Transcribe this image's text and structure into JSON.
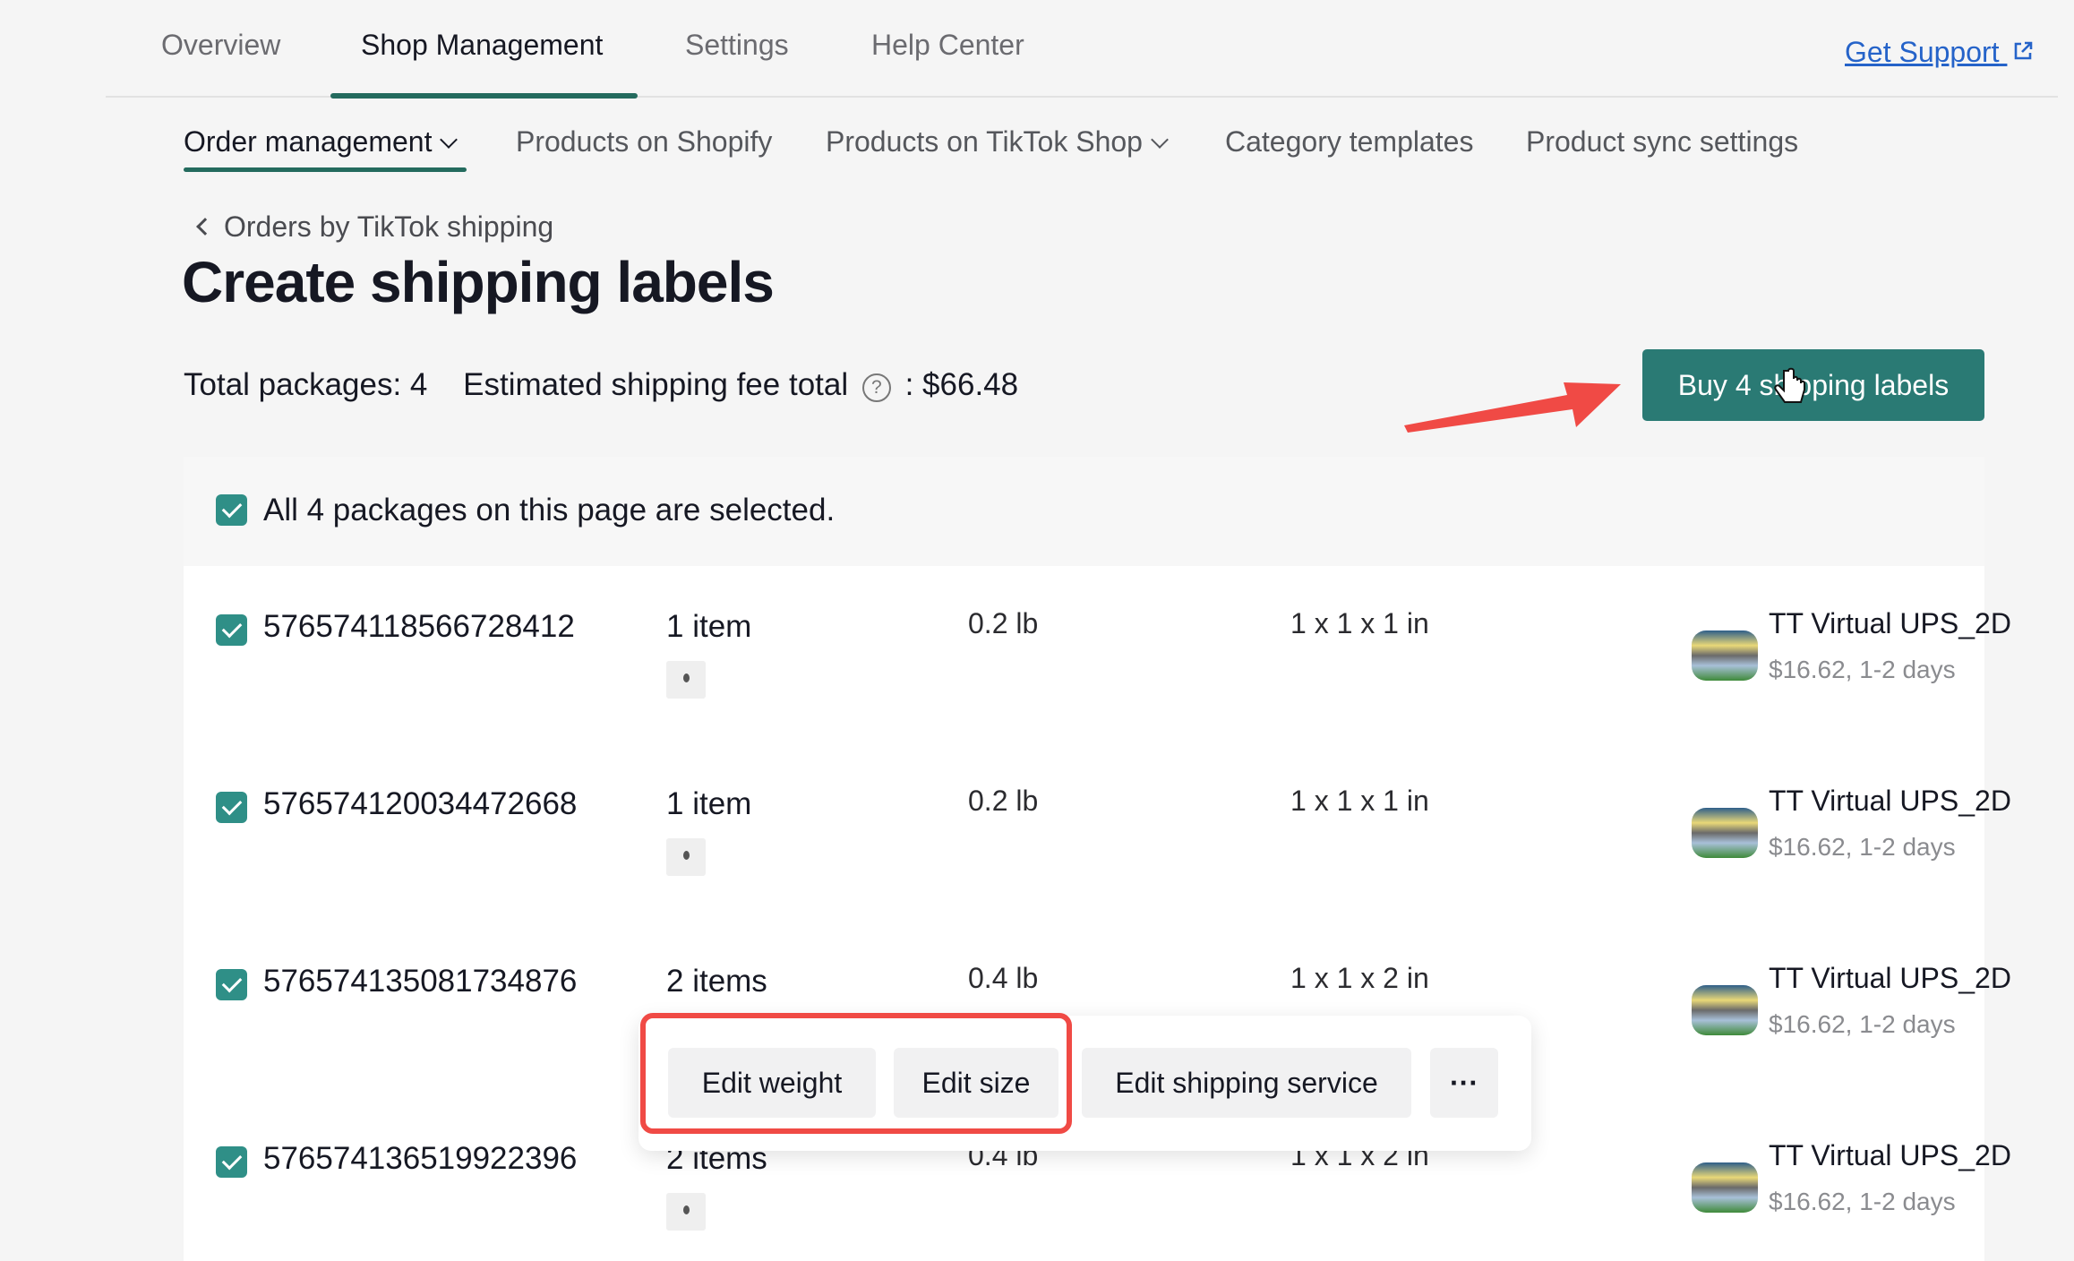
{
  "top_tabs": [
    {
      "label": "Overview"
    },
    {
      "label": "Shop Management",
      "active": true
    },
    {
      "label": "Settings"
    },
    {
      "label": "Help Center"
    }
  ],
  "get_support": {
    "label": "Get Support",
    "icon": "external-link-icon"
  },
  "sub_tabs": [
    {
      "label": "Order management",
      "dropdown": true,
      "active": true
    },
    {
      "label": "Products on Shopify"
    },
    {
      "label": "Products on TikTok Shop",
      "dropdown": true
    },
    {
      "label": "Category templates"
    },
    {
      "label": "Product sync settings"
    }
  ],
  "back_link": "Orders by TikTok shipping",
  "title": "Create shipping labels",
  "summary": {
    "total_packages": "Total packages: 4",
    "fee_label": "Estimated shipping fee total",
    "fee_value": ": $66.48"
  },
  "buy_button": "Buy 4 shipping labels",
  "select_all": "All 4 packages on this page are selected.",
  "packages": [
    {
      "id": "576574118566728412",
      "items": "1 item",
      "weight": "0.2 lb",
      "size": "1 x 1 x 1 in",
      "service": "TT Virtual UPS_2D",
      "price": "$16.62, 1-2 days"
    },
    {
      "id": "576574120034472668",
      "items": "1 item",
      "weight": "0.2 lb",
      "size": "1 x 1 x 1 in",
      "service": "TT Virtual UPS_2D",
      "price": "$16.62, 1-2 days"
    },
    {
      "id": "576574135081734876",
      "items": "2 items",
      "weight": "0.4 lb",
      "size": "1 x 1 x 2 in",
      "service": "TT Virtual UPS_2D",
      "price": "$16.62, 1-2 days"
    },
    {
      "id": "576574136519922396",
      "items": "2 items",
      "weight": "0.4 lb",
      "size": "1 x 1 x 2 in",
      "service": "TT Virtual UPS_2D",
      "price": "$16.62, 1-2 days"
    }
  ],
  "actions": {
    "edit_weight": "Edit weight",
    "edit_size": "Edit size",
    "edit_service": "Edit shipping service",
    "more": "···"
  },
  "colors": {
    "accent": "#2a7a74",
    "highlight": "#f04a45",
    "link": "#2563c9"
  }
}
